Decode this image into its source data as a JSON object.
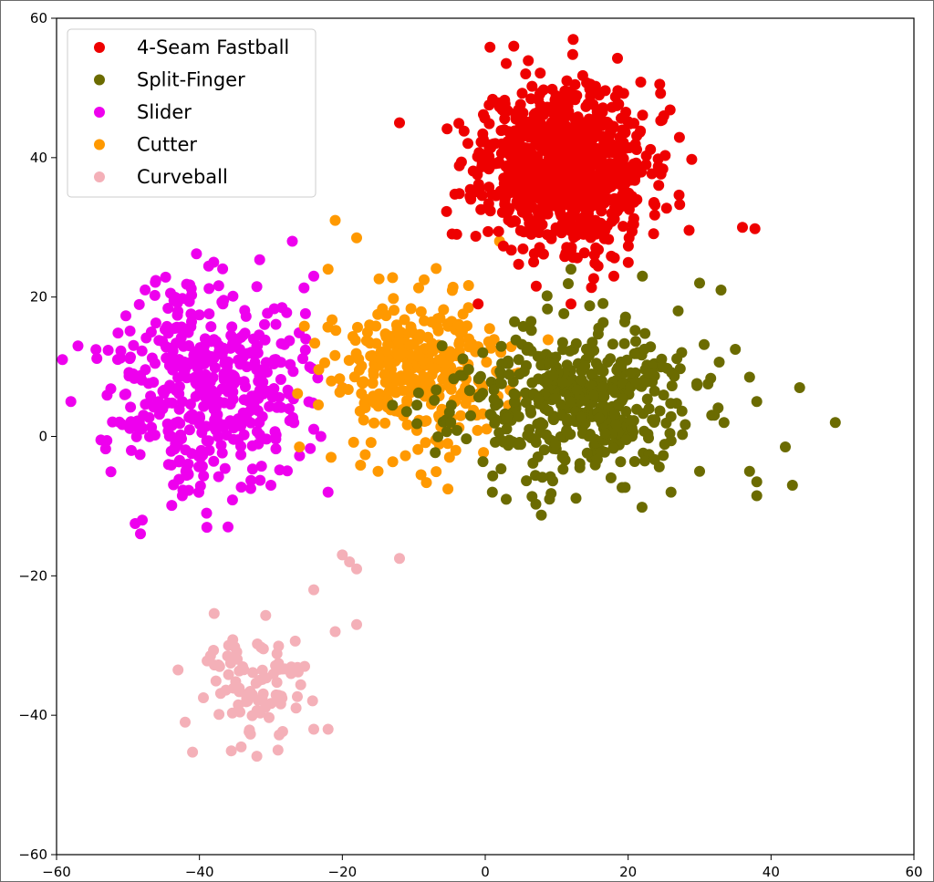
{
  "chart_data": {
    "type": "scatter",
    "title": "",
    "xlabel": "",
    "ylabel": "",
    "xlim": [
      -60,
      60
    ],
    "ylim": [
      -60,
      60
    ],
    "xticks": [
      -60,
      -40,
      -20,
      0,
      20,
      40,
      60
    ],
    "yticks": [
      -60,
      -40,
      -20,
      0,
      20,
      40,
      60
    ],
    "x_tick_labels": [
      "−60",
      "−40",
      "−20",
      "0",
      "20",
      "40",
      "60"
    ],
    "y_tick_labels": [
      "−60",
      "−40",
      "−20",
      "0",
      "20",
      "40",
      "60"
    ],
    "grid": false,
    "legend_position": "top-left",
    "series": [
      {
        "name": "4-Seam Fastball",
        "color": "#ee0000",
        "cluster": {
          "n": 900,
          "mean": [
            11,
            39
          ],
          "sd": [
            5.8,
            5.8
          ],
          "seed": 11
        },
        "points": [
          [
            -12,
            45
          ],
          [
            36,
            30
          ],
          [
            4,
            56
          ],
          [
            25,
            46
          ],
          [
            -4,
            29
          ],
          [
            18,
            23
          ],
          [
            12,
            19
          ],
          [
            -1,
            19
          ]
        ]
      },
      {
        "name": "Split-Finger",
        "color": "#6b6b00",
        "cluster": {
          "n": 450,
          "mean": [
            12,
            5
          ],
          "sd": [
            8.5,
            5.5
          ],
          "seed": 23
        },
        "points": [
          [
            49,
            2
          ],
          [
            44,
            7
          ],
          [
            43,
            -7
          ],
          [
            42,
            -1.5
          ],
          [
            38,
            -8.5
          ],
          [
            38,
            -6.5
          ],
          [
            37,
            -5
          ],
          [
            38,
            5
          ],
          [
            37,
            8.5
          ],
          [
            35,
            12.5
          ],
          [
            33,
            21
          ],
          [
            30,
            22
          ],
          [
            30,
            -5
          ],
          [
            26,
            -8
          ],
          [
            22,
            23
          ],
          [
            9,
            -9
          ],
          [
            1,
            -8
          ],
          [
            14,
            30
          ],
          [
            12,
            24
          ]
        ]
      },
      {
        "name": "Slider",
        "color": "#ee00ee",
        "cluster": {
          "n": 430,
          "mean": [
            -39,
            8
          ],
          "sd": [
            6.5,
            7.5
          ],
          "seed": 37
        },
        "points": [
          [
            -58,
            5
          ],
          [
            -57,
            13
          ],
          [
            -49,
            -12.5
          ],
          [
            -48,
            -12
          ],
          [
            -39,
            -11
          ],
          [
            -36,
            -13
          ],
          [
            -38,
            25
          ],
          [
            -27,
            28
          ],
          [
            -24,
            23
          ],
          [
            -22,
            -8
          ],
          [
            -23,
            0
          ],
          [
            -20,
            7
          ],
          [
            -30,
            -7
          ]
        ]
      },
      {
        "name": "Cutter",
        "color": "#ff9900",
        "cluster": {
          "n": 330,
          "mean": [
            -9,
            9
          ],
          "sd": [
            6.5,
            5.5
          ],
          "seed": 53
        },
        "points": [
          [
            -21,
            31
          ],
          [
            -18,
            28.5
          ],
          [
            -22,
            24
          ],
          [
            -26,
            -1.5
          ],
          [
            -15,
            -5
          ],
          [
            -5,
            -3
          ],
          [
            2,
            28
          ]
        ]
      },
      {
        "name": "Curveball",
        "color": "#f4b0b8",
        "cluster": {
          "n": 95,
          "mean": [
            -32,
            -36
          ],
          "sd": [
            4.2,
            4.5
          ],
          "seed": 71
        },
        "points": [
          [
            -20,
            -17
          ],
          [
            -19,
            -18
          ],
          [
            -18,
            -19
          ],
          [
            -12,
            -17.5
          ],
          [
            -18,
            -27
          ],
          [
            -24,
            -22
          ],
          [
            -21,
            -28
          ],
          [
            -22,
            -42
          ],
          [
            -42,
            -41
          ],
          [
            -43,
            -33.5
          ],
          [
            -29,
            -45
          ],
          [
            -24,
            -42
          ]
        ]
      }
    ]
  }
}
